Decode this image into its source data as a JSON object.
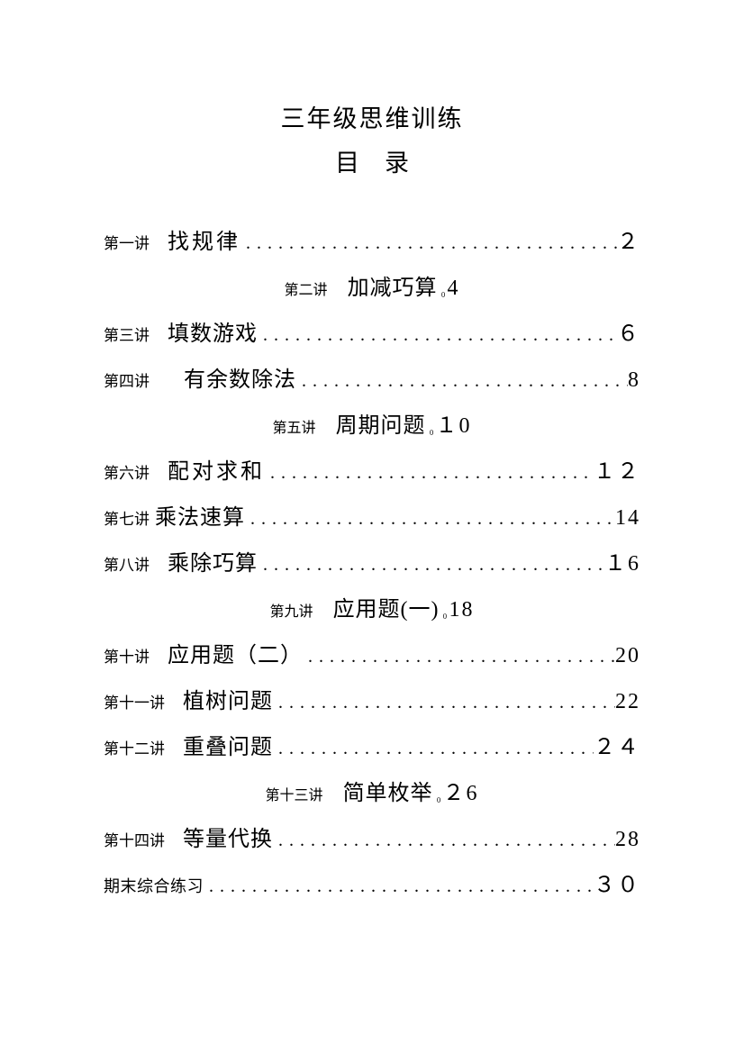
{
  "title": {
    "main": "三年级思维训练",
    "sub": "目录"
  },
  "entries": [
    {
      "type": "full",
      "label": "第一讲",
      "title": "找规律",
      "page": "２",
      "wide": true
    },
    {
      "type": "inline",
      "label": "第二讲",
      "title": "加减巧算",
      "page": "4"
    },
    {
      "type": "full",
      "label": "第三讲",
      "title": "填数游戏",
      "page": "６",
      "wide": false
    },
    {
      "type": "full",
      "label": "第四讲",
      "title": "有余数除法",
      "page": "8",
      "wide": false,
      "indent": true
    },
    {
      "type": "inline",
      "label": "第五讲",
      "title": "周期问题",
      "page": "１0"
    },
    {
      "type": "full",
      "label": "第六讲",
      "title": "配对求和",
      "page": "１２",
      "wide": true
    },
    {
      "type": "full",
      "label": "第七讲",
      "title": "乘法速算",
      "page": "14",
      "wide": false,
      "tight": true
    },
    {
      "type": "full",
      "label": "第八讲",
      "title": "乘除巧算",
      "page": "１6",
      "wide": false
    },
    {
      "type": "inline",
      "label": "第九讲",
      "title": "应用题(一)",
      "page": "18"
    },
    {
      "type": "full",
      "label": "第十讲",
      "title": "应用题（二）",
      "page": "20",
      "wide": false
    },
    {
      "type": "full",
      "label": "第十一讲",
      "title": "植树问题",
      "page": "22",
      "wide": false
    },
    {
      "type": "full",
      "label": "第十二讲",
      "title": "重叠问题",
      "page": "２４",
      "wide": false
    },
    {
      "type": "inline",
      "label": "第十三讲",
      "title": "简单枚举",
      "page": "２6"
    },
    {
      "type": "full",
      "label": "第十四讲",
      "title": "等量代换",
      "page": "28",
      "wide": false
    },
    {
      "type": "final",
      "label": "",
      "title": "期末综合练习",
      "page": "３０"
    }
  ],
  "style": {
    "background_color": "#ffffff",
    "text_color": "#000000",
    "title_fontsize": 27,
    "label_fontsize": 17,
    "chapter_title_fontsize": 24,
    "page_fontsize": 24,
    "font_family": "SimSun"
  }
}
